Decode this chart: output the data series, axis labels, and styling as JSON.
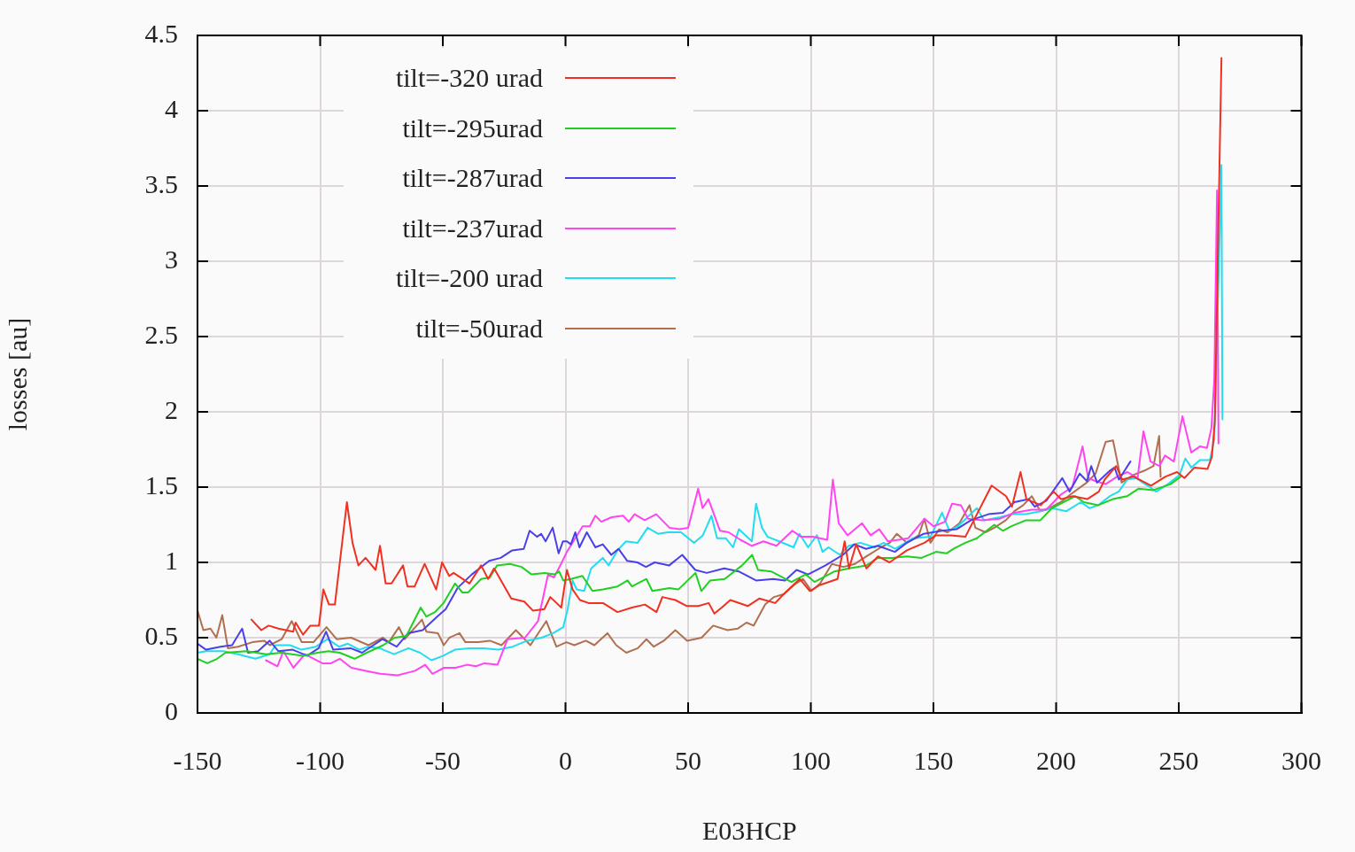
{
  "chart_data": {
    "type": "line",
    "xlabel": "E03HCP",
    "ylabel": "losses [au]",
    "xlim": [
      -150,
      300
    ],
    "xticks": [
      -150,
      -100,
      -50,
      0,
      50,
      100,
      150,
      200,
      250,
      300
    ],
    "ylim": [
      0,
      4.5
    ],
    "yticks": [
      0,
      0.5,
      1,
      1.5,
      2,
      2.5,
      3,
      3.5,
      4,
      4.5
    ],
    "grid": true,
    "legend": "top left",
    "marker": "none",
    "series": [
      {
        "name": "tilt=-320 urad",
        "color": "#f03020",
        "x": [
          -128,
          -124,
          -121,
          -117,
          -111,
          -110,
          -107,
          -104,
          -100.5,
          -98.7,
          -96.4,
          -94,
          -89.1,
          -86.8,
          -84.4,
          -81.5,
          -77.4,
          -75.6,
          -73.3,
          -70.9,
          -66.2,
          -64.4,
          -61.5,
          -57.4,
          -52.7,
          -50.3,
          -47.4,
          -45.6,
          -39.1,
          -34.4,
          -31.5,
          -29.1,
          -22.1,
          -16.8,
          -13.3,
          -8.6,
          -6.2,
          -1.7,
          0.6,
          2.9,
          5.9,
          9.4,
          15.3,
          21.2,
          27.1,
          32.4,
          37.1,
          39.5,
          44.8,
          49.5,
          54.2,
          58.4,
          60.7,
          63.7,
          67.2,
          74.3,
          79,
          85.5,
          89.6,
          95.5,
          99.6,
          103.8,
          110.9,
          113.8,
          115.6,
          118.5,
          122.7,
          127.4,
          132.1,
          139.2,
          146.3,
          151,
          157,
          163,
          173.7,
          179.6,
          182,
          185.5,
          187.9,
          193.8,
          199,
          202,
          206.8,
          212.7,
          217.4,
          219.8,
          224.5,
          226.9,
          231.6,
          238.7,
          244.6,
          249.3,
          252.3,
          256.4,
          261.7,
          263.5,
          264.7,
          267.4
        ],
        "values": [
          0.62,
          0.55,
          0.58,
          0.56,
          0.54,
          0.6,
          0.52,
          0.58,
          0.58,
          0.82,
          0.72,
          0.72,
          1.4,
          1.13,
          0.98,
          1.03,
          0.95,
          1.11,
          0.86,
          0.86,
          0.98,
          0.84,
          0.84,
          0.99,
          0.82,
          1.0,
          0.91,
          0.93,
          0.86,
          0.98,
          0.89,
          0.96,
          0.76,
          0.74,
          0.68,
          0.69,
          0.77,
          0.7,
          0.95,
          0.82,
          0.75,
          0.73,
          0.73,
          0.67,
          0.7,
          0.72,
          0.67,
          0.77,
          0.75,
          0.71,
          0.71,
          0.73,
          0.66,
          0.7,
          0.75,
          0.71,
          0.76,
          0.73,
          0.8,
          0.89,
          0.81,
          0.85,
          0.89,
          1.14,
          0.96,
          1.12,
          0.96,
          1.04,
          1.0,
          1.08,
          1.13,
          1.18,
          1.18,
          1.17,
          1.51,
          1.44,
          1.37,
          1.6,
          1.42,
          1.38,
          1.47,
          1.42,
          1.44,
          1.42,
          1.47,
          1.55,
          1.64,
          1.55,
          1.57,
          1.51,
          1.57,
          1.6,
          1.56,
          1.63,
          1.62,
          1.7,
          1.94,
          4.35
        ]
      },
      {
        "name": "tilt=-295urad",
        "color": "#20d020",
        "x": [
          -150,
          -146,
          -142,
          -138.6,
          -130,
          -122,
          -116,
          -107,
          -101,
          -96.6,
          -92,
          -86,
          -81,
          -74.3,
          -69.6,
          -64.9,
          -59,
          -56.7,
          -53.2,
          -49.7,
          -45,
          -42,
          -39.7,
          -34.4,
          -30.8,
          -27.9,
          -22.6,
          -17.9,
          -13.8,
          -8.5,
          -4.4,
          -2.6,
          -0.9,
          2.2,
          6.9,
          11,
          15.3,
          21.2,
          25.3,
          27.1,
          33,
          35.4,
          42.4,
          46,
          53,
          55.4,
          59,
          64.9,
          72,
          76.1,
          78.5,
          83.8,
          92.1,
          97.9,
          101.5,
          109.7,
          115.6,
          122.7,
          127.4,
          133.3,
          139.2,
          145.1,
          151.1,
          155.3,
          158.2,
          163,
          167.7,
          174.8,
          178.3,
          181.8,
          187.7,
          193.6,
          198.3,
          203,
          207.8,
          211.3,
          217.2,
          223.1,
          229,
          233.7,
          239.6,
          246.7,
          250.8
        ],
        "values": [
          0.36,
          0.33,
          0.36,
          0.4,
          0.41,
          0.39,
          0.4,
          0.38,
          0.4,
          0.41,
          0.4,
          0.36,
          0.4,
          0.45,
          0.5,
          0.51,
          0.7,
          0.64,
          0.67,
          0.73,
          0.86,
          0.8,
          0.8,
          0.89,
          0.9,
          0.98,
          0.99,
          0.97,
          0.92,
          0.93,
          0.92,
          0.94,
          0.88,
          0.89,
          0.91,
          0.81,
          0.82,
          0.84,
          0.88,
          0.84,
          0.89,
          0.81,
          0.83,
          0.82,
          0.93,
          0.81,
          0.88,
          0.89,
          0.98,
          1.05,
          0.95,
          0.94,
          0.87,
          0.92,
          0.87,
          0.94,
          0.96,
          0.98,
          1.03,
          1.03,
          1.04,
          1.03,
          1.07,
          1.06,
          1.09,
          1.13,
          1.16,
          1.25,
          1.21,
          1.24,
          1.28,
          1.28,
          1.36,
          1.4,
          1.44,
          1.4,
          1.38,
          1.42,
          1.44,
          1.49,
          1.48,
          1.52,
          1.57
        ]
      },
      {
        "name": "tilt=-287urad",
        "color": "#4a40e8",
        "x": [
          -150,
          -146.5,
          -140.6,
          -135.9,
          -131.8,
          -129.4,
          -125.3,
          -120.6,
          -117,
          -111.2,
          -105.3,
          -100.6,
          -97.6,
          -94.7,
          -87.6,
          -82.9,
          -74.6,
          -68.8,
          -64.1,
          -58.2,
          -52.3,
          -48.8,
          -44,
          -38.2,
          -31.1,
          -26.4,
          -21.7,
          -17,
          -14.6,
          -11.6,
          -9.9,
          -8.1,
          -5.2,
          -2.8,
          -1,
          0.6,
          2.2,
          4,
          5.7,
          8.7,
          12.2,
          15.2,
          18.7,
          21.6,
          25.2,
          29.3,
          32.8,
          36.4,
          42.3,
          47.6,
          52.9,
          57.6,
          64.7,
          70.6,
          77.7,
          84.8,
          89.5,
          94.2,
          98.9,
          106,
          113.1,
          117.8,
          122.5,
          127.3,
          134.3,
          139.1,
          146.1,
          153.5,
          159.4,
          165.3,
          172.4,
          178.3,
          183,
          188.9,
          191.3,
          196,
          202.5,
          205.5,
          209.6,
          212.6,
          214.3,
          216.7,
          222,
          223.8,
          225.6,
          230.3
        ],
        "values": [
          0.46,
          0.42,
          0.44,
          0.45,
          0.56,
          0.4,
          0.41,
          0.48,
          0.41,
          0.42,
          0.38,
          0.43,
          0.54,
          0.42,
          0.43,
          0.4,
          0.49,
          0.44,
          0.53,
          0.55,
          0.64,
          0.69,
          0.83,
          0.92,
          1.01,
          1.03,
          1.08,
          1.09,
          1.21,
          1.17,
          1.19,
          1.14,
          1.23,
          1.06,
          1.14,
          1.14,
          1.12,
          1.2,
          1.1,
          1.2,
          1.1,
          1.12,
          1.05,
          1.09,
          1.01,
          1.0,
          0.97,
          1.0,
          0.98,
          1.05,
          0.95,
          0.93,
          0.96,
          0.94,
          0.88,
          0.89,
          0.88,
          0.95,
          0.92,
          0.98,
          1.05,
          1.12,
          1.09,
          1.11,
          1.07,
          1.13,
          1.19,
          1.21,
          1.22,
          1.28,
          1.32,
          1.33,
          1.4,
          1.42,
          1.37,
          1.41,
          1.56,
          1.47,
          1.59,
          1.54,
          1.64,
          1.53,
          1.61,
          1.63,
          1.55,
          1.67
        ]
      },
      {
        "name": "tilt=-237urad",
        "color": "#ff44f0",
        "x": [
          -122.1,
          -117.4,
          -115,
          -110.9,
          -106.2,
          -102.6,
          -99.1,
          -95.6,
          -92,
          -87.3,
          -81.4,
          -75.5,
          -68.4,
          -61.3,
          -57.2,
          -54.2,
          -49.5,
          -44.8,
          -40.1,
          -36.5,
          -33,
          -27.7,
          -23.6,
          -16.5,
          -11.2,
          -7.1,
          -4.7,
          -1.8,
          0.6,
          7,
          9.9,
          12.2,
          14.6,
          18.8,
          23.5,
          25.8,
          28.2,
          32.3,
          37,
          42.4,
          46.5,
          50,
          54.1,
          55.9,
          58.3,
          63,
          66.5,
          71.3,
          76,
          80.7,
          86,
          92.5,
          96,
          100.8,
          106.7,
          109,
          111.4,
          115,
          120.9,
          124.4,
          127.9,
          131.4,
          139.7,
          146.4,
          150,
          154.7,
          157.6,
          161.2,
          164.1,
          170,
          177.1,
          183,
          190.1,
          196,
          201.9,
          206.6,
          210.8,
          213.1,
          216.1,
          220.2,
          224.9,
          229.1,
          233.2,
          235.6,
          238.5,
          242.1,
          244.4,
          248,
          251.5,
          255.1,
          258.6,
          261.5,
          263.3,
          264.5,
          265.6,
          266.2
        ],
        "values": [
          0.35,
          0.31,
          0.41,
          0.3,
          0.39,
          0.36,
          0.33,
          0.33,
          0.36,
          0.3,
          0.28,
          0.26,
          0.25,
          0.28,
          0.32,
          0.26,
          0.3,
          0.3,
          0.32,
          0.31,
          0.33,
          0.32,
          0.49,
          0.5,
          0.61,
          0.92,
          0.9,
          0.99,
          1.07,
          1.24,
          1.24,
          1.31,
          1.27,
          1.3,
          1.31,
          1.27,
          1.32,
          1.28,
          1.32,
          1.23,
          1.22,
          1.23,
          1.49,
          1.36,
          1.42,
          1.21,
          1.2,
          1.15,
          1.11,
          1.14,
          1.11,
          1.21,
          1.17,
          1.17,
          1.15,
          1.55,
          1.26,
          1.18,
          1.26,
          1.18,
          1.22,
          1.14,
          1.16,
          1.29,
          1.24,
          1.27,
          1.39,
          1.38,
          1.29,
          1.28,
          1.29,
          1.33,
          1.35,
          1.35,
          1.45,
          1.5,
          1.77,
          1.56,
          1.54,
          1.52,
          1.57,
          1.6,
          1.56,
          1.87,
          1.67,
          1.64,
          1.71,
          1.67,
          1.97,
          1.73,
          1.77,
          1.76,
          1.89,
          2.22,
          3.47,
          1.79
        ]
      },
      {
        "name": "tilt=-200 urad",
        "color": "#22dcf0",
        "x": [
          -150,
          -146.5,
          -139.4,
          -133.5,
          -126.4,
          -120.6,
          -118.2,
          -112.3,
          -107.6,
          -101.7,
          -97,
          -92.3,
          -88.7,
          -84,
          -80.5,
          -75.8,
          -69.9,
          -64,
          -59.3,
          -54.6,
          -49.8,
          -45.1,
          -39.2,
          -33.3,
          -27.4,
          -21.5,
          -15.6,
          -9.7,
          -5,
          -0.9,
          0.9,
          2.9,
          4.6,
          7.6,
          10.5,
          15.2,
          17.6,
          21.2,
          24.7,
          29.4,
          33.5,
          37.7,
          41.8,
          47.1,
          52.4,
          56,
          59.5,
          61.8,
          65.4,
          68.3,
          70.7,
          76,
          77.7,
          80.1,
          82.4,
          87.1,
          93,
          95.4,
          98.9,
          102.5,
          104.8,
          107.2,
          111.9,
          115.5,
          120.2,
          126.1,
          129.7,
          134.4,
          141.5,
          148.8,
          153.5,
          156.5,
          160,
          167.7,
          170.6,
          177.1,
          181.8,
          187.7,
          193.6,
          198.3,
          204.2,
          210.1,
          213.7,
          217.2,
          221.9,
          225.5,
          229,
          232.6,
          237.3,
          240.8,
          245.6,
          250.3,
          252.7,
          255.1,
          258.6,
          262.7,
          264.5,
          267.4,
          267.8
        ],
        "values": [
          0.4,
          0.41,
          0.41,
          0.39,
          0.36,
          0.39,
          0.45,
          0.45,
          0.42,
          0.44,
          0.49,
          0.44,
          0.46,
          0.42,
          0.44,
          0.43,
          0.39,
          0.43,
          0.4,
          0.35,
          0.38,
          0.42,
          0.43,
          0.43,
          0.42,
          0.44,
          0.48,
          0.5,
          0.53,
          0.57,
          0.69,
          0.88,
          0.82,
          0.81,
          0.96,
          1.03,
          0.98,
          1.08,
          1.14,
          1.13,
          1.23,
          1.19,
          1.2,
          1.2,
          1.13,
          1.18,
          1.31,
          1.16,
          1.16,
          1.1,
          1.22,
          1.14,
          1.39,
          1.23,
          1.17,
          1.14,
          1.1,
          1.19,
          1.1,
          1.18,
          1.07,
          1.1,
          1.05,
          1.11,
          1.13,
          1.1,
          1.13,
          1.09,
          1.16,
          1.17,
          1.33,
          1.21,
          1.24,
          1.36,
          1.28,
          1.3,
          1.32,
          1.32,
          1.34,
          1.36,
          1.34,
          1.4,
          1.36,
          1.38,
          1.44,
          1.47,
          1.55,
          1.56,
          1.51,
          1.47,
          1.52,
          1.58,
          1.69,
          1.63,
          1.68,
          1.68,
          1.82,
          3.64,
          1.95
        ]
      },
      {
        "name": "tilt=-50urad",
        "color": "#b07050",
        "x": [
          -150,
          -147.6,
          -144.7,
          -142.3,
          -139.9,
          -137.6,
          -133.5,
          -127.6,
          -122.8,
          -120.5,
          -115.7,
          -111.6,
          -107.5,
          -102.7,
          -97.4,
          -93.3,
          -87.4,
          -80.3,
          -74.4,
          -72,
          -67.9,
          -65.5,
          -58.5,
          -56.7,
          -52,
          -49.6,
          -47.3,
          -43.2,
          -40.8,
          -35.5,
          -30.8,
          -26.1,
          -20.2,
          -14.3,
          -7.8,
          -3.7,
          0.4,
          3.6,
          8.3,
          11.8,
          17.1,
          20.7,
          24.8,
          29.5,
          33,
          36,
          40.1,
          44.8,
          49.6,
          55.5,
          60.2,
          66.1,
          70.2,
          73.8,
          76.7,
          81.4,
          85,
          89.1,
          93.2,
          96.8,
          100.3,
          103.8,
          108.6,
          113.3,
          118,
          122.7,
          128.6,
          132.2,
          135.1,
          139.2,
          144,
          146.3,
          148.8,
          152.3,
          155.8,
          160.6,
          164.7,
          167.1,
          171.2,
          174.8,
          179.5,
          183,
          186.6,
          190.1,
          193.6,
          197.2,
          201.9,
          206.6,
          212.5,
          216.1,
          220.2,
          223.2,
          226.7,
          231.4,
          236.1,
          239.7,
          242,
          242.6
        ],
        "values": [
          0.68,
          0.55,
          0.56,
          0.5,
          0.65,
          0.43,
          0.44,
          0.47,
          0.48,
          0.45,
          0.49,
          0.61,
          0.47,
          0.47,
          0.57,
          0.49,
          0.5,
          0.45,
          0.5,
          0.47,
          0.57,
          0.49,
          0.62,
          0.54,
          0.53,
          0.45,
          0.5,
          0.53,
          0.47,
          0.47,
          0.48,
          0.45,
          0.55,
          0.45,
          0.61,
          0.44,
          0.47,
          0.45,
          0.48,
          0.45,
          0.53,
          0.45,
          0.4,
          0.43,
          0.49,
          0.44,
          0.48,
          0.55,
          0.48,
          0.5,
          0.58,
          0.55,
          0.56,
          0.6,
          0.58,
          0.72,
          0.77,
          0.79,
          0.85,
          0.89,
          0.81,
          0.86,
          0.99,
          0.97,
          0.99,
          1.04,
          1.1,
          1.13,
          1.19,
          1.13,
          1.18,
          1.29,
          1.13,
          1.22,
          1.2,
          1.26,
          1.38,
          1.23,
          1.2,
          1.23,
          1.28,
          1.34,
          1.38,
          1.44,
          1.34,
          1.36,
          1.4,
          1.46,
          1.53,
          1.59,
          1.8,
          1.81,
          1.53,
          1.58,
          1.61,
          1.64,
          1.84,
          1.57
        ]
      }
    ]
  }
}
